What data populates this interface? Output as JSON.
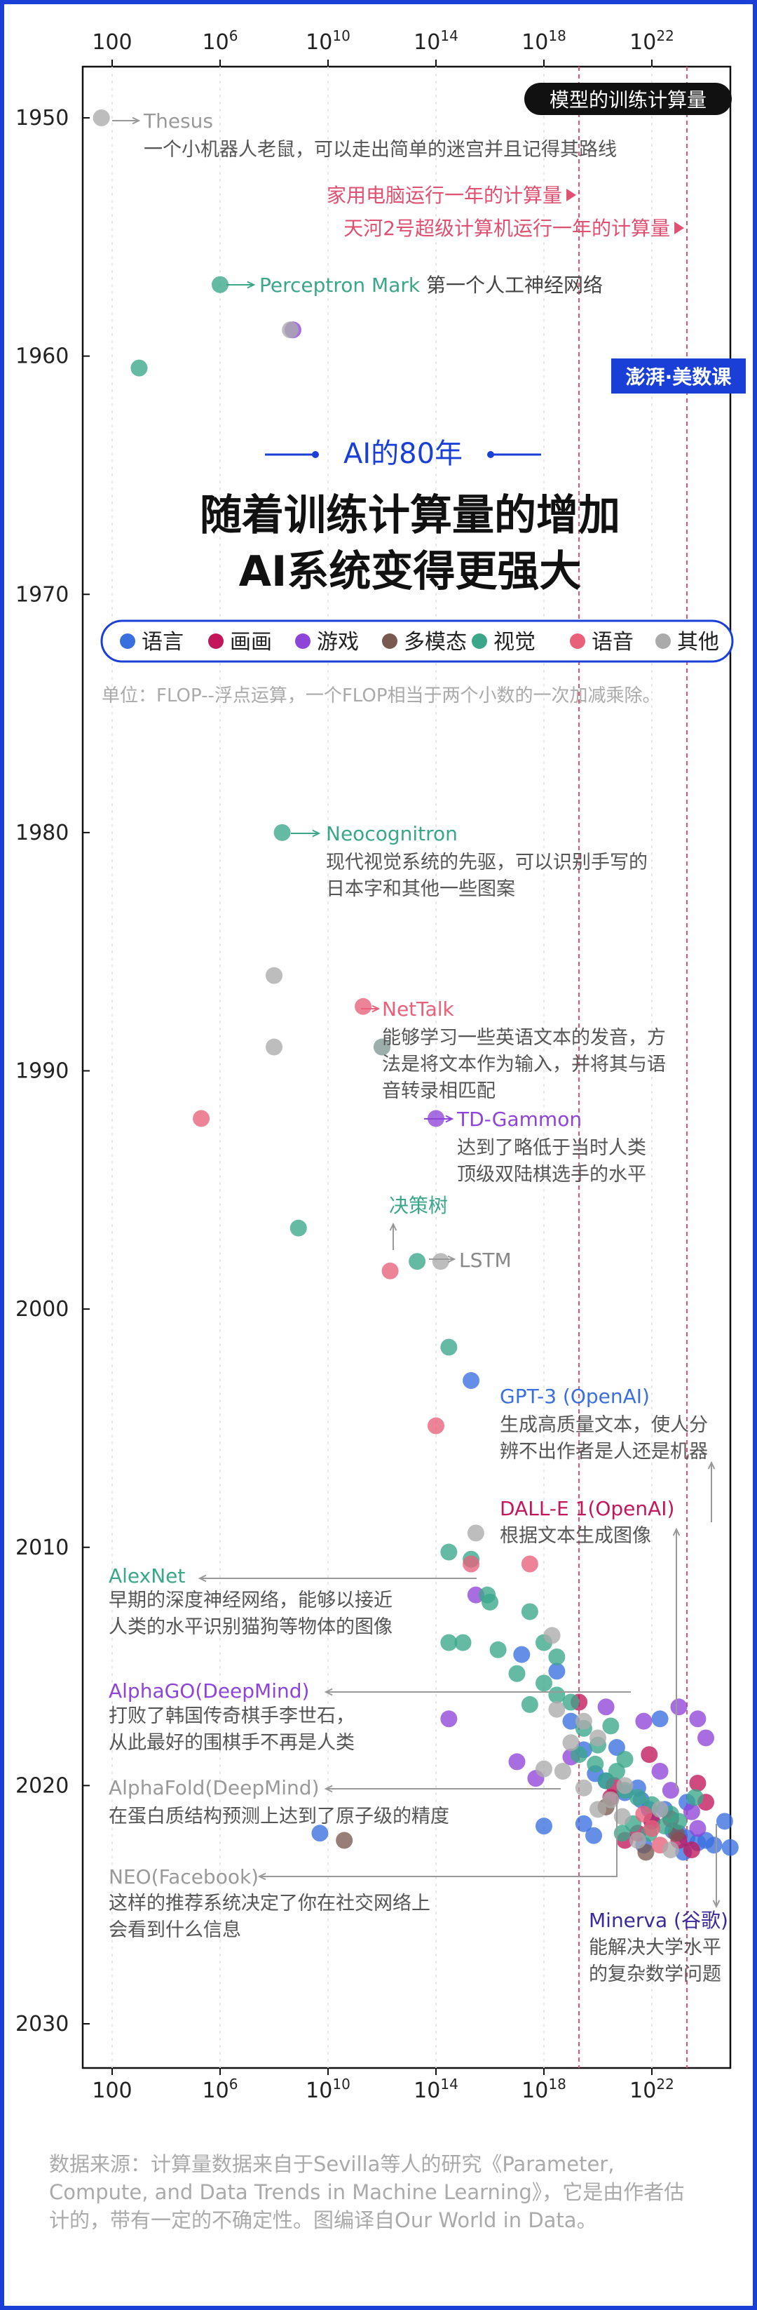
{
  "header": {
    "badge": "模型的训练计算量",
    "subtitle": "AI的80年",
    "title_line1": "随着训练计算量的增加",
    "title_line2": "AI系统变得更强大",
    "watermark": "澎湃·美数课"
  },
  "legend": [
    {
      "label": "语言",
      "color": "#3a6fe0"
    },
    {
      "label": "画画",
      "color": "#c2185b"
    },
    {
      "label": "游戏",
      "color": "#8e44d9"
    },
    {
      "label": "多模态",
      "color": "#7a5a50"
    },
    {
      "label": "视觉",
      "color": "#3aa68a"
    },
    {
      "label": "语音",
      "color": "#e8607a"
    },
    {
      "label": "其他",
      "color": "#aaaaaa"
    }
  ],
  "unit_note": "单位：FLOP--浮点运算，一个FLOP相当于两个小数的一次加减乘除。",
  "source_note": {
    "line1": "数据来源：计算量数据来自于Sevilla等人的研究《Parameter,",
    "line2": "Compute, and Data Trends in Machine Learning》，它是由作者估",
    "line3": "计的，带有一定的不确定性。图编译自Our World in Data。"
  },
  "reference_lines": [
    {
      "label": "家用电脑运行一年的计算量",
      "exp": 19.3,
      "color": "#e05070"
    },
    {
      "label": "天河2号超级计算机运行一年的计算量",
      "exp": 23.3,
      "color": "#e05070"
    }
  ],
  "annotations": [
    {
      "id": "thesus",
      "title": "Thesus",
      "desc": [
        "一个小机器人老鼠，可以走出简单的迷宫并且记得其路线"
      ],
      "color": "#999999"
    },
    {
      "id": "perceptron",
      "title": "Perceptron Mark",
      "suffix": "第一个人工神经网络",
      "color": "#3aa68a"
    },
    {
      "id": "neocognitron",
      "title": "Neocognitron",
      "desc": [
        "现代视觉系统的先驱，可以识别手写的",
        "日本字和其他一些图案"
      ],
      "color": "#3aa68a"
    },
    {
      "id": "nettalk",
      "title": "NetTalk",
      "desc": [
        "能够学习一些英语文本的发音，方",
        "法是将文本作为输入，并将其与语",
        "音转录相匹配"
      ],
      "color": "#e8607a"
    },
    {
      "id": "tdgammon",
      "title": "TD-Gammon",
      "desc": [
        "达到了略低于当时人类",
        "顶级双陆棋选手的水平"
      ],
      "color": "#8e44d9"
    },
    {
      "id": "tree",
      "title": "决策树",
      "color": "#3aa68a"
    },
    {
      "id": "lstm",
      "title": "LSTM",
      "color": "#888888"
    },
    {
      "id": "gpt3",
      "title": "GPT-3 (OpenAI)",
      "desc": [
        "生成高质量文本，使人分",
        "辨不出作者是人还是机器"
      ],
      "color": "#3a6fe0"
    },
    {
      "id": "dalle",
      "title": "DALL-E 1(OpenAI)",
      "desc": [
        "根据文本生成图像"
      ],
      "color": "#c2185b"
    },
    {
      "id": "alexnet",
      "title": "AlexNet",
      "desc": [
        "早期的深度神经网络，能够以接近",
        "人类的水平识别猫狗等物体的图像"
      ],
      "color": "#3aa68a"
    },
    {
      "id": "alphago",
      "title": "AlphaGO(DeepMind)",
      "desc": [
        "打败了韩国传奇棋手李世石，",
        "从此最好的围棋手不再是人类"
      ],
      "color": "#8e44d9"
    },
    {
      "id": "alphafold",
      "title": "AlphaFold(DeepMind)",
      "desc": [
        "在蛋白质结构预测上达到了原子级的精度"
      ],
      "color": "#999999"
    },
    {
      "id": "neo",
      "title": "NEO(Facebook)",
      "desc": [
        "这样的推荐系统决定了你在社交网络上",
        "会看到什么信息"
      ],
      "color": "#999999"
    },
    {
      "id": "minerva",
      "title": "Minerva (谷歌)",
      "desc": [
        "能解决大学水平",
        "的复杂数学问题"
      ],
      "color": "#3a2a9a"
    }
  ],
  "chart_data": {
    "type": "scatter",
    "title": "模型的训练计算量",
    "xlabel": "",
    "ylabel": "",
    "x_scale": "log",
    "xlim": [
      1,
      1e+25
    ],
    "ylim": [
      1950,
      2030
    ],
    "x_ticks": [
      "100",
      "10^6",
      "10^10",
      "10^14",
      "10^18",
      "10^22"
    ],
    "y_ticks": [
      "1950",
      "1960",
      "1970",
      "1980",
      "1990",
      "2000",
      "2010",
      "2020",
      "2030"
    ],
    "series": [
      {
        "name": "语言",
        "color": "#3a6fe0",
        "points": [
          [
            2000000000000000.0,
            2003.0
          ],
          [
            5000000000.0,
            2022.0
          ],
          [
            1.5e+17,
            2014.5
          ],
          [
            3e+18,
            2015.2
          ],
          [
            1e+19,
            2017.3
          ],
          [
            3e+19,
            2018.5
          ],
          [
            8e+19,
            2019.5
          ],
          [
            2e+20,
            2019.8
          ],
          [
            1e+21,
            2020.3
          ],
          [
            3e+21,
            2020.1
          ],
          [
            4e+21,
            2020.6
          ],
          [
            8e+21,
            2021.0
          ],
          [
            1e+22,
            2021.5
          ],
          [
            3e+22,
            2021.0
          ],
          [
            6e+22,
            2021.9
          ],
          [
            1e+23,
            2022.0
          ],
          [
            2e+23,
            2022.2
          ],
          [
            5e+23,
            2022.4
          ],
          [
            1e+24,
            2022.3
          ],
          [
            2e+24,
            2022.5
          ],
          [
            2e+22,
            2017.2
          ],
          [
            5e+20,
            2018.4
          ],
          [
            3e+19,
            2021.6
          ],
          [
            7e+19,
            2022.1
          ],
          [
            5e+21,
            2022.5
          ],
          [
            2e+23,
            2020.7
          ],
          [
            5e+24,
            2021.5
          ],
          [
            8e+24,
            2022.6
          ],
          [
            1.5e+23,
            2022.8
          ],
          [
            1e+18,
            2021.7
          ]
        ]
      },
      {
        "name": "画画",
        "color": "#c2185b",
        "points": [
          [
            3e+20,
            2020.5
          ],
          [
            3e+21,
            2022.0
          ],
          [
            1e+22,
            2021.5
          ],
          [
            5e+22,
            2021.4
          ],
          [
            1e+23,
            2022.3
          ],
          [
            3e+23,
            2022.7
          ],
          [
            1e+21,
            2022.3
          ],
          [
            4e+20,
            2020.0
          ],
          [
            2e+19,
            2016.5
          ],
          [
            8e+21,
            2018.7
          ],
          [
            5e+23,
            2019.9
          ],
          [
            1e+24,
            2020.7
          ]
        ]
      },
      {
        "name": "游戏",
        "color": "#8e44d9",
        "points": [
          [
            500000000.0,
            1958.9
          ],
          [
            100000000000000.0,
            1992.0
          ],
          [
            3000000000000000.0,
            2012.0
          ],
          [
            300000000000000.0,
            2017.2
          ],
          [
            1e+17,
            2019.0
          ],
          [
            5e+17,
            2019.7
          ],
          [
            1e+19,
            2018.8
          ],
          [
            2e+20,
            2016.7
          ],
          [
            5e+21,
            2017.3
          ],
          [
            2e+22,
            2019.4
          ],
          [
            1e+23,
            2016.7
          ],
          [
            5e+23,
            2017.2
          ],
          [
            1e+24,
            2018.0
          ],
          [
            5e+22,
            2020.2
          ],
          [
            3e+23,
            2021.1
          ],
          [
            5e+23,
            2021.8
          ]
        ]
      },
      {
        "name": "多模态",
        "color": "#7a5a50",
        "points": [
          [
            40000000000.0,
            2022.3
          ],
          [
            2e+20,
            2020.9
          ],
          [
            6e+21,
            2022.8
          ],
          [
            8e+22,
            2022.0
          ]
        ]
      },
      {
        "name": "视觉",
        "color": "#3aa68a",
        "points": [
          [
            1000.0,
            1960.5
          ],
          [
            1000000.0,
            1957.0
          ],
          [
            200000000.0,
            1980.0
          ],
          [
            1000000000000.0,
            1989.0
          ],
          [
            800000000.0,
            1996.6
          ],
          [
            20000000000000.0,
            1998.0
          ],
          [
            300000000000000.0,
            2001.6
          ],
          [
            300000000000000.0,
            2010.2
          ],
          [
            2000000000000000.0,
            2010.5
          ],
          [
            8000000000000000.0,
            2012.0
          ],
          [
            1e+16,
            2012.3
          ],
          [
            300000000000000.0,
            2014.0
          ],
          [
            1000000000000000.0,
            2014.0
          ],
          [
            2e+16,
            2014.3
          ],
          [
            3e+17,
            2012.7
          ],
          [
            1e+18,
            2014.0
          ],
          [
            3e+18,
            2014.6
          ],
          [
            1e+17,
            2015.3
          ],
          [
            1e+18,
            2015.7
          ],
          [
            3e+17,
            2016.6
          ],
          [
            3e+18,
            2016.2
          ],
          [
            1e+19,
            2016.5
          ],
          [
            3e+19,
            2017.6
          ],
          [
            1e+20,
            2018.3
          ],
          [
            3e+20,
            2017.5
          ],
          [
            5e+20,
            2019.4
          ],
          [
            1e+21,
            2018.9
          ],
          [
            2e+19,
            2018.7
          ],
          [
            8e+19,
            2019.1
          ],
          [
            2e+20,
            2019.8
          ],
          [
            1e+21,
            2020.2
          ],
          [
            3e+21,
            2020.5
          ],
          [
            1e+22,
            2020.8
          ],
          [
            5e+22,
            2021.2
          ],
          [
            1e+23,
            2021.5
          ],
          [
            4e+23,
            2020.5
          ],
          [
            2e+21,
            2021.6
          ],
          [
            8e+21,
            2022.0
          ],
          [
            3e+22,
            2021.7
          ],
          [
            8e+20,
            2022.0
          ]
        ]
      },
      {
        "name": "语音",
        "color": "#e8607a",
        "points": [
          [
            200000000000.0,
            1987.3
          ],
          [
            200000.0,
            1992.0
          ],
          [
            2000000000000.0,
            1998.4
          ],
          [
            100000000000000.0,
            2004.9
          ],
          [
            2000000000000000.0,
            2010.7
          ],
          [
            3e+17,
            2010.7
          ],
          [
            1e+22,
            2021.8
          ],
          [
            2e+22,
            2022.5
          ],
          [
            5e+21,
            2021.2
          ]
        ]
      },
      {
        "name": "其他",
        "color": "#aaaaaa",
        "points": [
          [
            40,
            1950.0
          ],
          [
            400000000.0,
            1958.9
          ],
          [
            100000000.0,
            1986.0
          ],
          [
            100000000.0,
            1989.0
          ],
          [
            1000000000000.0,
            1989.0
          ],
          [
            150000000000000.0,
            1998.0
          ],
          [
            3000000000000000.0,
            2009.4
          ],
          [
            2e+18,
            2013.7
          ],
          [
            3e+18,
            2016.8
          ],
          [
            1e+19,
            2018.2
          ],
          [
            1e+18,
            2019.3
          ],
          [
            3e+19,
            2020.1
          ],
          [
            1e+20,
            2021.0
          ],
          [
            3e+20,
            2020.6
          ],
          [
            8e+20,
            2021.3
          ],
          [
            3e+21,
            2022.3
          ],
          [
            1e+21,
            2020.0
          ],
          [
            3e+19,
            2017.3
          ],
          [
            5e+18,
            2019.4
          ],
          [
            1e+20,
            2018.0
          ],
          [
            2e+22,
            2021.0
          ],
          [
            5e+22,
            2022.7
          ]
        ]
      }
    ]
  }
}
